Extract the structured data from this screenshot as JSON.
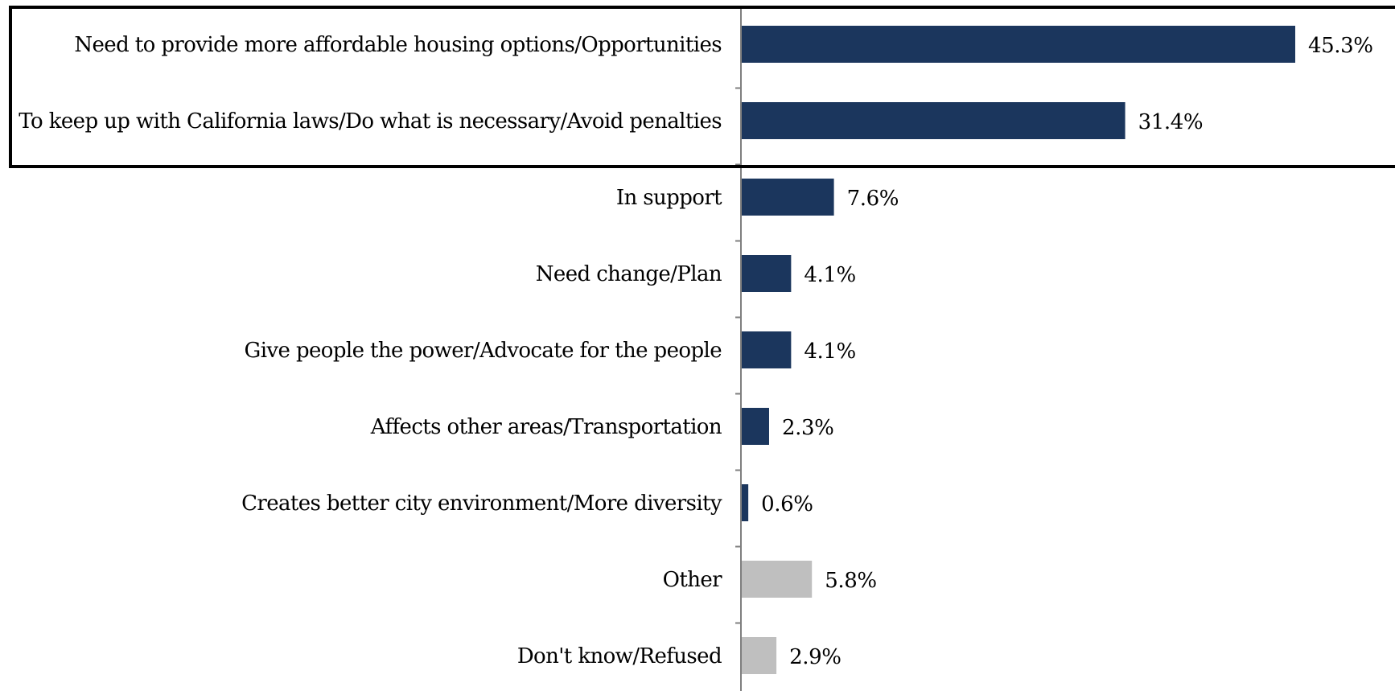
{
  "chart_data": {
    "type": "bar",
    "orientation": "horizontal",
    "title": "",
    "xlabel": "",
    "ylabel": "",
    "xlim": [
      0,
      50
    ],
    "value_suffix": "%",
    "grid": false,
    "legend": "none",
    "categories": [
      "Need to provide more affordable housing options/Opportunities",
      "To keep up with California laws/Do what is necessary/Avoid penalties",
      "In support",
      "Need change/Plan",
      "Give people the power/Advocate for the people",
      "Affects other areas/Transportation",
      "Creates better city environment/More diversity",
      "Other",
      "Don't know/Refused"
    ],
    "values": [
      45.3,
      31.4,
      7.6,
      4.1,
      4.1,
      2.3,
      0.6,
      5.8,
      2.9
    ],
    "value_labels": [
      "45.3%",
      "31.4%",
      "7.6%",
      "4.1%",
      "4.1%",
      "2.3%",
      "0.6%",
      "5.8%",
      "2.9%"
    ],
    "bar_colors": [
      "#1b365d",
      "#1b365d",
      "#1b365d",
      "#1b365d",
      "#1b365d",
      "#1b365d",
      "#1b365d",
      "#bfbfbf",
      "#bfbfbf"
    ],
    "highlighted_categories": [
      0,
      1
    ],
    "highlight_box_color": "#000000",
    "axis_color": "#7f7f7f"
  }
}
